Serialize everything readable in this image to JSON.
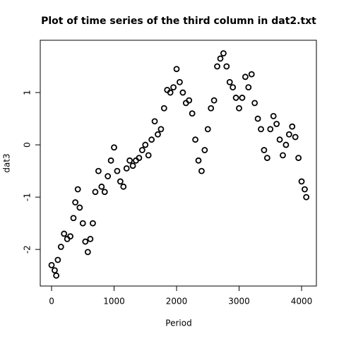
{
  "chart_data": {
    "type": "scatter",
    "title": "Plot of time series of the third column in dat2.txt",
    "x_label": "Period",
    "y_label": "dat3",
    "color": "#000000",
    "xlim": [
      -181,
      4237
    ],
    "ylim": [
      -2.7,
      2.0
    ],
    "xticks": [
      0,
      1000,
      2000,
      3000,
      4000
    ],
    "yticks": [
      -2,
      -1,
      0,
      1
    ],
    "x": [
      0,
      50,
      75,
      100,
      150,
      200,
      250,
      300,
      350,
      380,
      420,
      450,
      500,
      540,
      580,
      620,
      660,
      700,
      750,
      800,
      850,
      900,
      950,
      1000,
      1050,
      1100,
      1150,
      1200,
      1250,
      1300,
      1350,
      1400,
      1450,
      1500,
      1550,
      1600,
      1650,
      1700,
      1750,
      1800,
      1850,
      1900,
      1950,
      2000,
      2050,
      2100,
      2150,
      2200,
      2250,
      2300,
      2350,
      2400,
      2450,
      2500,
      2550,
      2600,
      2650,
      2700,
      2750,
      2800,
      2850,
      2900,
      2950,
      3000,
      3050,
      3100,
      3150,
      3200,
      3250,
      3300,
      3350,
      3400,
      3450,
      3500,
      3550,
      3600,
      3650,
      3700,
      3750,
      3800,
      3850,
      3900,
      3950,
      4000,
      4050,
      4075
    ],
    "values": [
      -2.3,
      -2.4,
      -2.5,
      -2.2,
      -1.95,
      -1.7,
      -1.8,
      -1.75,
      -1.4,
      -1.1,
      -0.85,
      -1.2,
      -1.5,
      -1.85,
      -2.05,
      -1.8,
      -1.5,
      -0.9,
      -0.5,
      -0.8,
      -0.9,
      -0.6,
      -0.3,
      -0.05,
      -0.5,
      -0.7,
      -0.8,
      -0.45,
      -0.3,
      -0.4,
      -0.3,
      -0.25,
      -0.1,
      0.0,
      -0.2,
      0.1,
      0.45,
      0.2,
      0.3,
      0.7,
      1.05,
      1.0,
      1.1,
      1.45,
      1.2,
      1.0,
      0.8,
      0.85,
      0.6,
      0.1,
      -0.3,
      -0.5,
      -0.1,
      0.3,
      0.7,
      0.85,
      1.5,
      1.65,
      1.75,
      1.5,
      1.2,
      1.1,
      0.9,
      0.7,
      0.9,
      1.3,
      1.1,
      1.35,
      0.8,
      0.5,
      0.3,
      -0.1,
      -0.25,
      0.3,
      0.55,
      0.4,
      0.1,
      -0.2,
      0.0,
      0.2,
      0.35,
      0.15,
      -0.25,
      -0.7,
      -0.85,
      -1.0
    ]
  }
}
